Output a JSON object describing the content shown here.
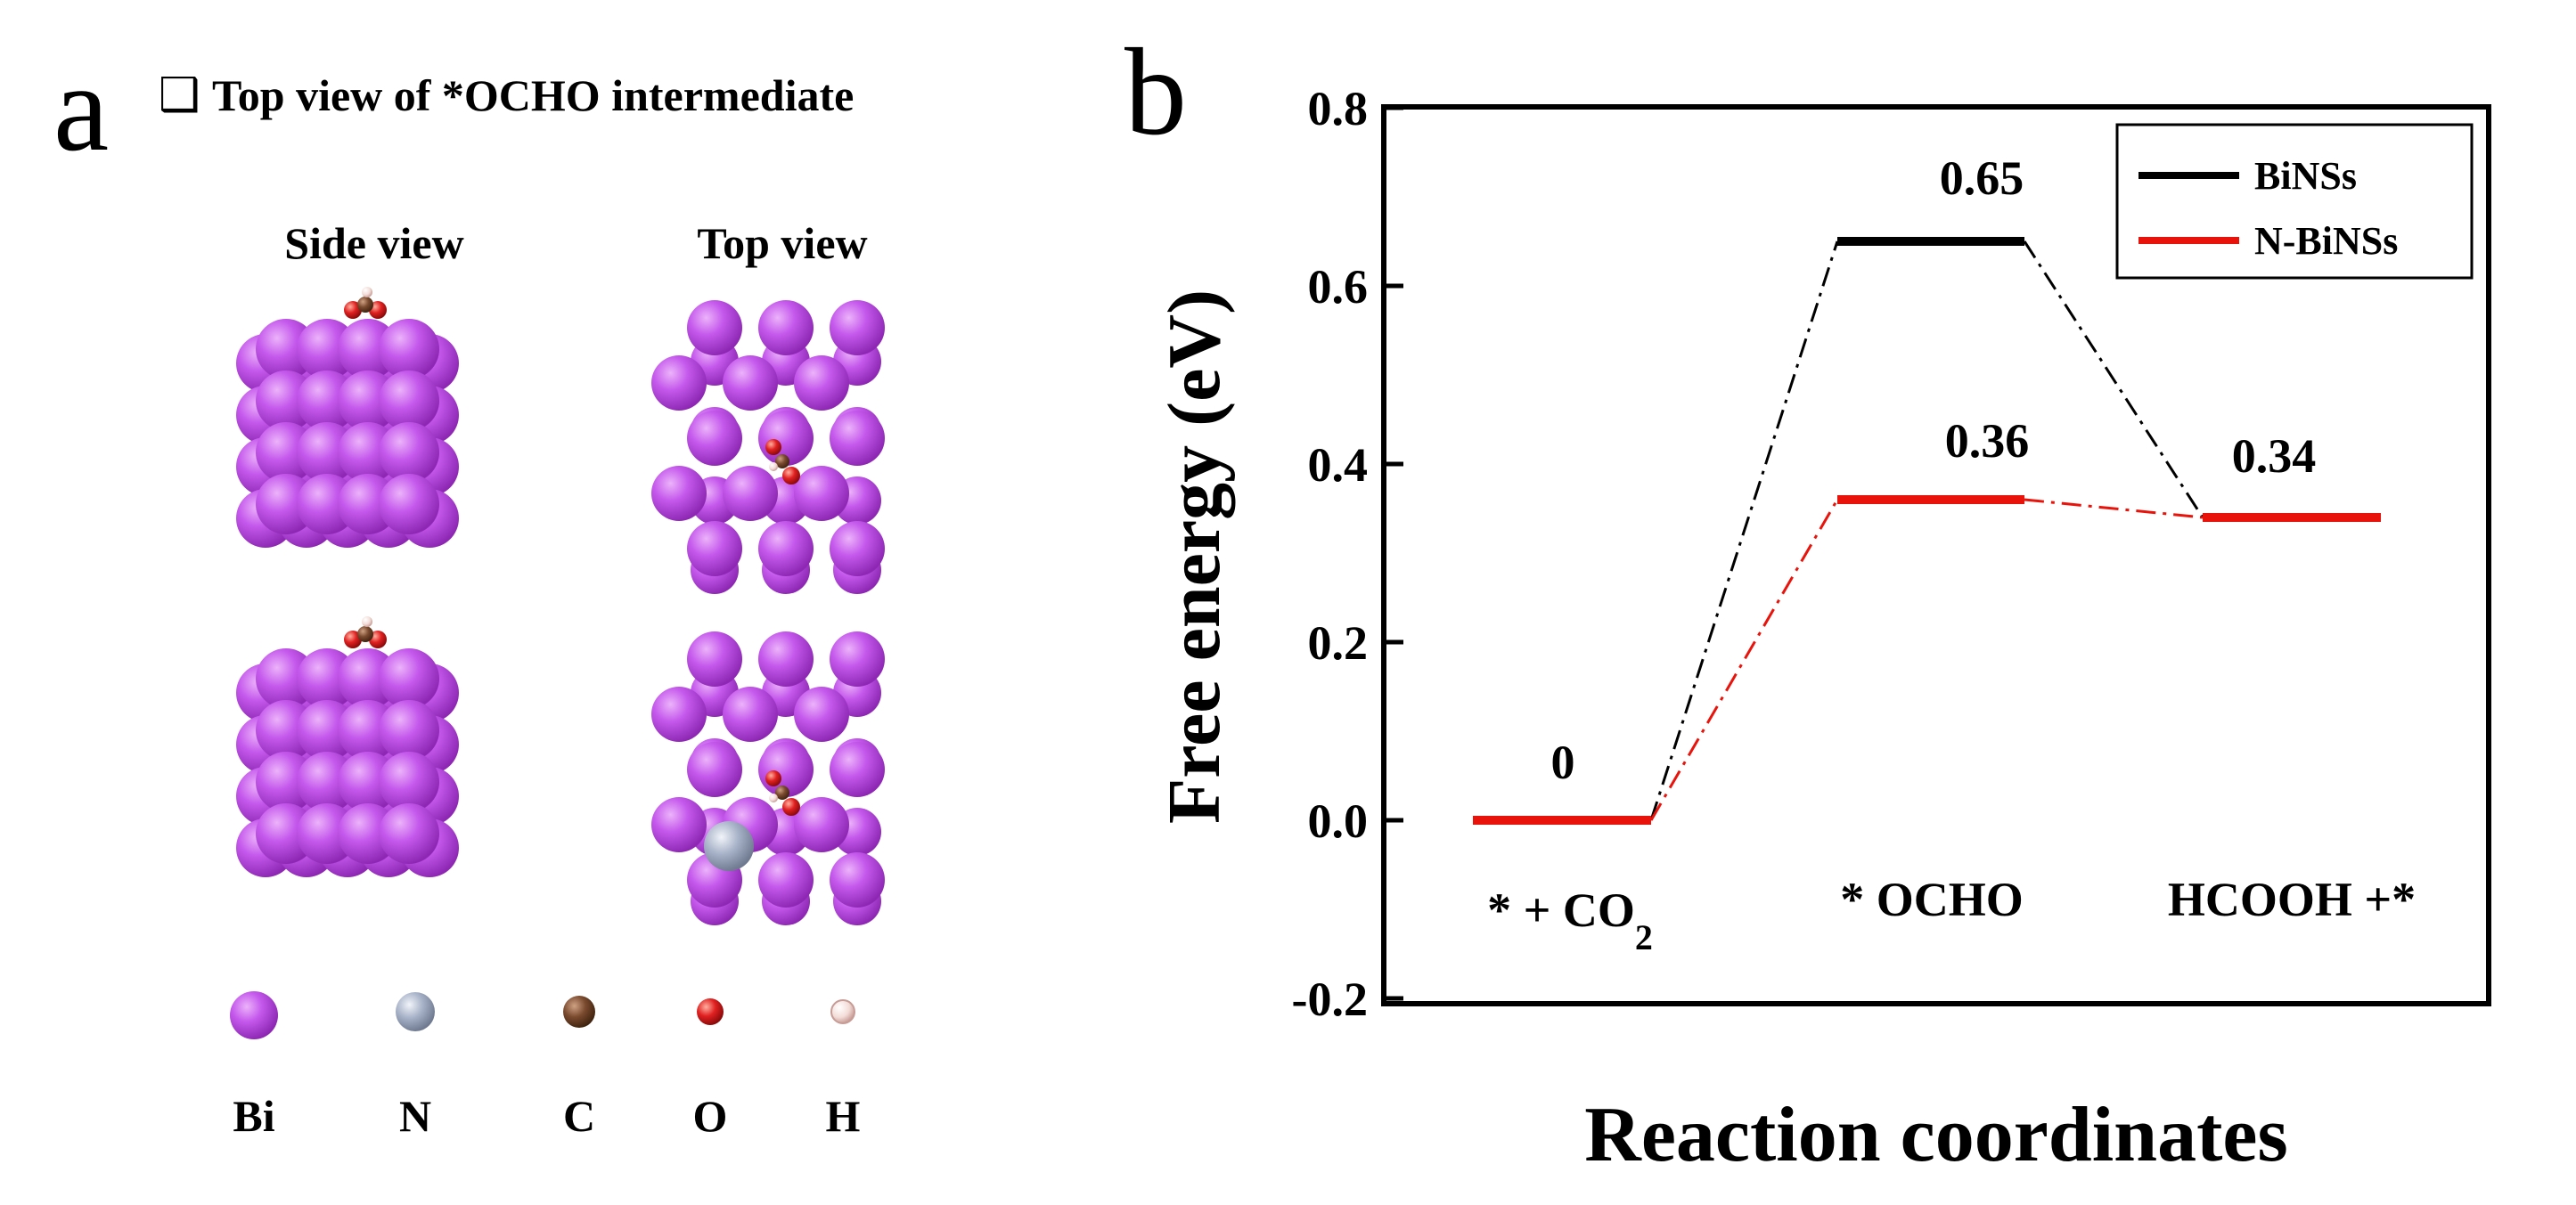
{
  "panel_a": {
    "label": "a",
    "header_checkbox": "❑",
    "title": "Top view of *OCHO intermediate",
    "side_view_label": "Side view",
    "top_view_label": "Top view",
    "legend": [
      {
        "symbol": "Bi",
        "color": "#b640e0",
        "highlight": "#e6a6f6"
      },
      {
        "symbol": "N",
        "color": "#98a4bc",
        "highlight": "#e8edf5"
      },
      {
        "symbol": "C",
        "color": "#6a4028",
        "highlight": "#c79a7a"
      },
      {
        "symbol": "O",
        "color": "#d81c1c",
        "highlight": "#ff9a8a"
      },
      {
        "symbol": "H",
        "color": "#f2d6d0",
        "highlight": "#ffffff"
      }
    ]
  },
  "chart_data": {
    "panel_label": "b",
    "type": "energy_diagram",
    "ylabel": "Free energy (eV)",
    "xlabel": "Reaction coordinates",
    "ylim": [
      -0.2,
      0.8
    ],
    "yticks": [
      "-0.2",
      "0.0",
      "0.2",
      "0.4",
      "0.6",
      "0.8"
    ],
    "categories": [
      {
        "main": "* + CO",
        "sub": "2"
      },
      {
        "main": "* OCHO",
        "sub": ""
      },
      {
        "main": "HCOOH +*",
        "sub": ""
      }
    ],
    "series": [
      {
        "name": "BiNSs",
        "color": "#000000",
        "values": [
          0,
          0.65,
          0.34
        ]
      },
      {
        "name": "N-BiNSs",
        "color": "#e8140c",
        "values": [
          0,
          0.36,
          0.34
        ]
      }
    ],
    "data_labels": [
      "0",
      "0.65",
      "0.36",
      "0.34"
    ],
    "legend_position": "top-right"
  }
}
